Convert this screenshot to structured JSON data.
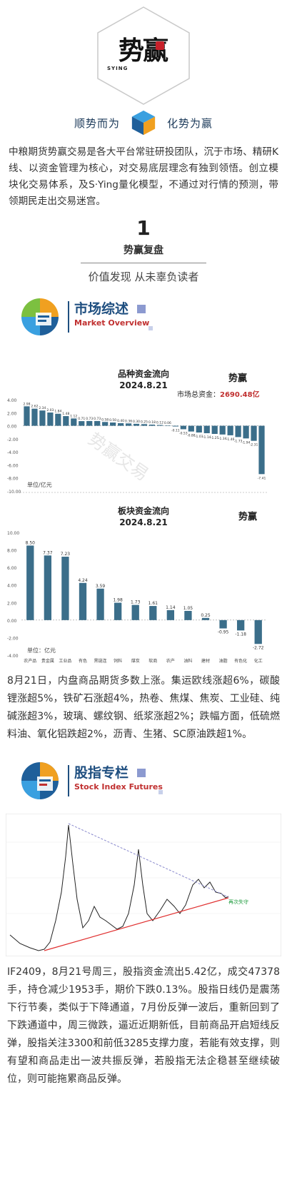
{
  "header": {
    "logo_text": "势赢",
    "logo_sub": "SYING",
    "motto_left": "顺势而为",
    "motto_right": "化势为赢"
  },
  "intro": "中粮期货势赢交易是各大平台常驻研投团队，沉于市场、精研K线、以资金管理为核心，对交易底层理念有独到领悟。创立模块化交易体系，及S·Ying量化模型，不通过对行情的预测，带领期民走出交易迷宫。",
  "section": {
    "number": "1",
    "title": "势赢复盘",
    "subtitle": "价值发现 从未辜负读者"
  },
  "market_overview": {
    "title_cn": "市场综述",
    "title_en": "Market Overview"
  },
  "chart1": {
    "title": "品种资金流向",
    "date": "2024.8.21",
    "total_label": "市场总资金：",
    "total_value": "2690.48亿",
    "unit": "单位/亿元",
    "watermark": "势赢交易"
  },
  "chart2": {
    "title": "板块资金流向",
    "date": "2024.8.21",
    "unit": "单位：亿元"
  },
  "chart_data": [
    {
      "type": "bar",
      "title": "品种资金流向",
      "subtitle": "2024.8.21",
      "ylim": [
        -10,
        4
      ],
      "yticks": [
        "4.00",
        "2.00",
        "0.00",
        "-2.00",
        "-4.00",
        "-6.00",
        "-8.00",
        "-10.00"
      ],
      "values": [
        2.98,
        2.62,
        2.34,
        2.03,
        1.84,
        1.48,
        1.12,
        0.71,
        0.73,
        0.73,
        0.58,
        0.5,
        0.4,
        0.36,
        0.3,
        0.25,
        0.18,
        0.12,
        0.06,
        -0.11,
        -0.53,
        -0.88,
        -1.03,
        -1.14,
        -1.25,
        -1.34,
        -1.46,
        -1.73,
        -1.94,
        -2.31,
        -7.41
      ],
      "labels": [
        "2.98",
        "2.62",
        "2.34",
        "2.03",
        "1.84",
        "1.48",
        "1.12",
        "0.71",
        "0.73",
        "0.73",
        "0.58",
        "0.50",
        "0.40",
        "0.36",
        "0.30",
        "0.25",
        "0.18",
        "0.12",
        "0.06",
        "-0.11",
        "-0.53",
        "-0.88",
        "-1.03",
        "-1.14",
        "-1.25",
        "-1.34",
        "-1.46",
        "-1.73",
        "-1.94",
        "-2.31",
        "-7.41"
      ]
    },
    {
      "type": "bar",
      "title": "板块资金流向",
      "subtitle": "2024.8.21",
      "ylim": [
        -4,
        10
      ],
      "yticks": [
        "10.00",
        "8.00",
        "6.00",
        "4.00",
        "2.00",
        "0.00",
        "-2.00",
        "-4.00"
      ],
      "categories": [
        "农产品",
        "贵金属",
        "工业品",
        "有色",
        "黑链连",
        "饲料",
        "煤炭",
        "软商",
        "农产",
        "油料",
        "建材",
        "油脂",
        "有色化",
        "化工"
      ],
      "values": [
        8.5,
        7.37,
        7.23,
        4.24,
        3.59,
        1.98,
        1.73,
        1.61,
        1.14,
        1.05,
        0.25,
        -0.95,
        -1.18,
        -2.72
      ],
      "labels": [
        "8.50",
        "7.37",
        "7.23",
        "4.24",
        "3.59",
        "1.98",
        "1.73",
        "1.61",
        "1.14",
        "1.05",
        "0.25",
        "-0.95",
        "-1.18",
        "-2.72"
      ]
    }
  ],
  "paragraph1": "8月21日，内盘商品期货多数上涨。集运欧线涨超6%，碳酸锂涨超5%，铁矿石涨超4%，热卷、焦煤、焦炭、工业硅、纯碱涨超3%，玻璃、螺纹钢、纸浆涨超2%；跌幅方面，低硫燃料油、氧化铝跌超2%，沥青、生猪、SC原油跌超1%。",
  "stock_index": {
    "title_cn": "股指专栏",
    "title_en": "Stock Index Futures",
    "annotation": "再次失守"
  },
  "paragraph2": "IF2409，8月21号周三，股指资金流出5.42亿，成交47378手，持仓减少1953手，期价下跌0.13%。股指日线仍是震荡下行节奏，类似于下降通道，7月份反弹一波后，重新回到了下跌通道中，周三微跌，逼近近期新低，目前商品开启短线反弹，股指关注3300和前低3285支撑力度，若能有效支撑，则有望和商品走出一波共振反弹，若股指无法企稳甚至继续破位，则可能拖累商品反弹。"
}
